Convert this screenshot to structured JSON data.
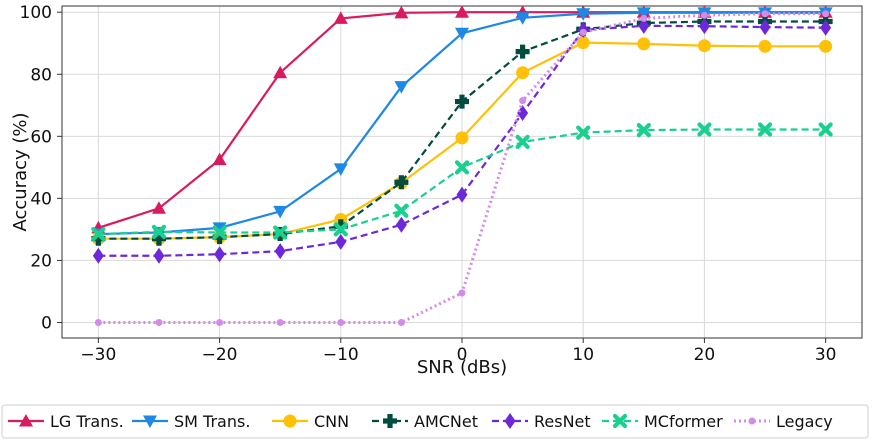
{
  "chart_data": {
    "type": "line",
    "title": "",
    "xlabel": "SNR (dBs)",
    "ylabel": "Accuracy (%)",
    "xlim": [
      -33,
      33
    ],
    "ylim": [
      -5,
      102
    ],
    "grid": true,
    "legend_position": "bottom",
    "x": [
      -30,
      -25,
      -20,
      -15,
      -10,
      -5,
      0,
      5,
      10,
      15,
      20,
      25,
      30
    ],
    "xticks": [
      -30,
      -20,
      -10,
      0,
      10,
      20,
      30
    ],
    "xtick_labels": [
      "−30",
      "−20",
      "−10",
      "0",
      "10",
      "20",
      "30"
    ],
    "yticks": [
      0,
      20,
      40,
      60,
      80,
      100
    ],
    "ytick_labels": [
      "0",
      "20",
      "40",
      "60",
      "80",
      "100"
    ],
    "series": [
      {
        "name": "LG Trans.",
        "color": "#d81b60",
        "dash": "solid",
        "marker": "triangle-up",
        "values": [
          30.5,
          36.8,
          52.5,
          80.5,
          98,
          99.8,
          100,
          100,
          100,
          100,
          100,
          100,
          100
        ]
      },
      {
        "name": "SM Trans.",
        "color": "#1e88e5",
        "dash": "solid",
        "marker": "triangle-down",
        "values": [
          28.5,
          29,
          30.5,
          35.8,
          49.5,
          76,
          93.2,
          98.2,
          99.5,
          99.8,
          99.8,
          99.8,
          99.8
        ]
      },
      {
        "name": "CNN",
        "color": "#ffc107",
        "dash": "solid",
        "marker": "circle",
        "values": [
          27,
          27,
          27.5,
          28.5,
          33.2,
          45,
          59.5,
          80.5,
          90.2,
          89.8,
          89.2,
          89,
          89
        ]
      },
      {
        "name": "AMCNet",
        "color": "#004d40",
        "dash": "dashed",
        "marker": "plus",
        "values": [
          27,
          27,
          27.5,
          28.5,
          31,
          45.2,
          71.2,
          87.3,
          94.5,
          96.5,
          97,
          97,
          97
        ]
      },
      {
        "name": "ResNet",
        "color": "#6d28d9",
        "dash": "dashed",
        "marker": "diamond",
        "values": [
          21.5,
          21.5,
          22,
          23,
          26,
          31.5,
          41.2,
          67.5,
          94.3,
          95.6,
          95.5,
          95.2,
          95
        ]
      },
      {
        "name": "MCformer",
        "color": "#1ad08f",
        "dash": "dashed",
        "marker": "x",
        "values": [
          28.5,
          29.2,
          29,
          29,
          30,
          36,
          50,
          58.2,
          61.2,
          62,
          62.2,
          62.2,
          62.2
        ]
      },
      {
        "name": "Legacy",
        "color": "#d38ae8",
        "dash": "dotted",
        "marker": "small-circle",
        "values": [
          0,
          0,
          0,
          0,
          0,
          0,
          9.5,
          71.5,
          93.5,
          98,
          99,
          99.5,
          99.5
        ]
      }
    ]
  }
}
